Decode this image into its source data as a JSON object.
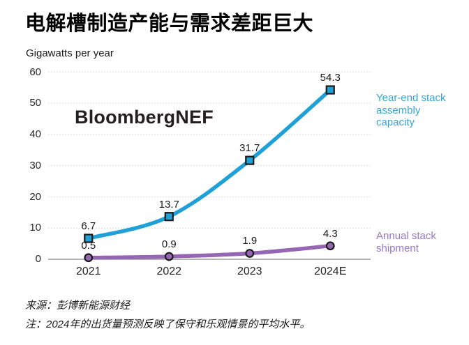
{
  "page": {
    "title": "电解槽制造产能与需求差距巨大",
    "unit_label": "Gigawatts per year",
    "watermark": "BloombergNEF",
    "source_line": "来源：彭博新能源财经",
    "note_line": "注：2024年的出货量预测反映了保守和乐观情景的平均水平。"
  },
  "colors": {
    "capacity_line": "#1fa0d6",
    "shipment_line": "#9566b3",
    "legend_capacity_text": "#36a5db",
    "legend_shipment_text": "#9878c8",
    "marker_outline": "#1a1a1a",
    "gridline": "#d8d8d8",
    "zero_axis": "#9b9b9b",
    "value_label_text": "#1a1a1a"
  },
  "legend": {
    "capacity_label": "Year-end stack\nassembly\ncapacity",
    "shipment_label": "Annual stack\nshipment"
  },
  "chart_data": {
    "type": "line",
    "title": "电解槽制造产能与需求差距巨大",
    "ylabel": "Gigawatts per year",
    "categories": [
      "2021",
      "2022",
      "2023",
      "2024E"
    ],
    "series": [
      {
        "name": "Year-end stack assembly capacity",
        "values": [
          6.7,
          13.7,
          31.7,
          54.3
        ],
        "color": "#1fa0d6",
        "marker": "square"
      },
      {
        "name": "Annual stack shipment",
        "values": [
          0.5,
          0.9,
          1.9,
          4.3
        ],
        "color": "#9566b3",
        "marker": "circle"
      }
    ],
    "ylim": [
      0,
      60
    ],
    "ytick_step": 10,
    "grid": "horizontal-dotted",
    "legend_position": "right",
    "data_labels": true
  }
}
